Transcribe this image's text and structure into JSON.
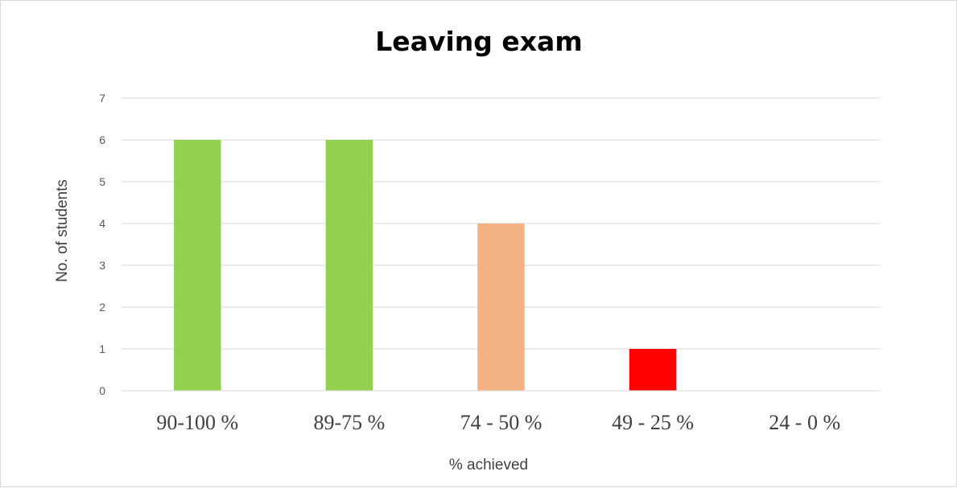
{
  "chart_data": {
    "type": "bar",
    "title": "Leaving exam",
    "xlabel": "% achieved",
    "ylabel": "No. of students",
    "categories": [
      "90-100 %",
      "89-75 %",
      "74 - 50 %",
      "49 - 25 %",
      "24 - 0 %"
    ],
    "values": [
      6,
      6,
      4,
      1,
      0
    ],
    "bar_colors": [
      "#92d050",
      "#92d050",
      "#f4b183",
      "#ff0000",
      "#ff0000"
    ],
    "ylim": [
      0,
      7
    ],
    "yticks": [
      0,
      1,
      2,
      3,
      4,
      5,
      6,
      7
    ],
    "grid": true,
    "legend": "none"
  }
}
